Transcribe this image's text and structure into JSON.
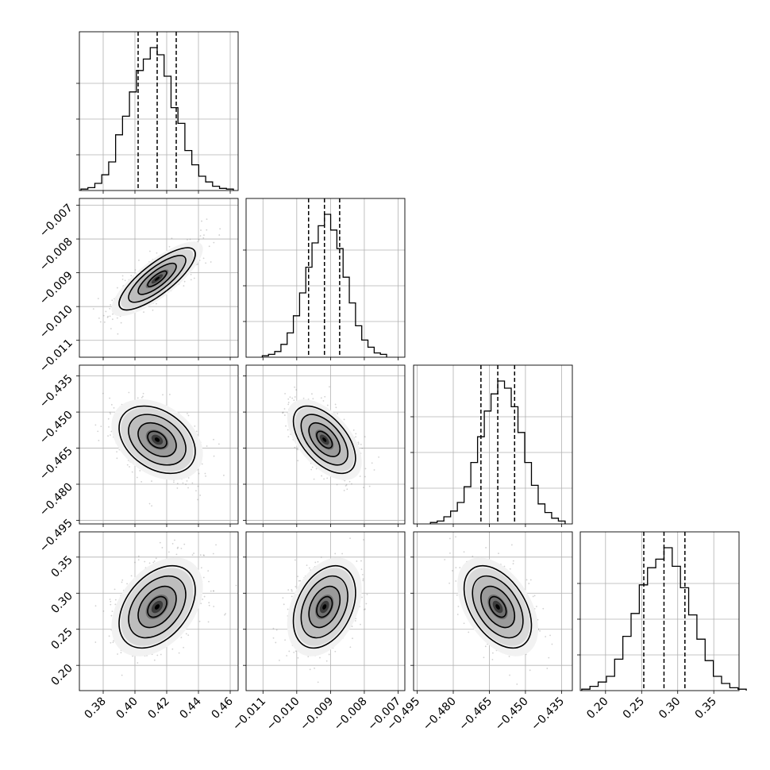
{
  "chart_data": {
    "type": "corner",
    "n_params": 4,
    "grid": true,
    "parameters": [
      {
        "ticks": [
          0.38,
          0.4,
          0.42,
          0.44,
          0.46
        ],
        "tick_labels": [
          "0.38",
          "0.40",
          "0.42",
          "0.44",
          "0.46"
        ],
        "range": [
          0.365,
          0.465
        ],
        "quantiles": [
          0.402,
          0.414,
          0.426
        ],
        "hist": [
          0.01,
          0.02,
          0.05,
          0.11,
          0.2,
          0.39,
          0.52,
          0.69,
          0.84,
          0.92,
          1.0,
          0.95,
          0.8,
          0.58,
          0.47,
          0.28,
          0.18,
          0.1,
          0.06,
          0.03,
          0.015,
          0.01
        ]
      },
      {
        "ticks": [
          -0.011,
          -0.01,
          -0.009,
          -0.008,
          -0.007
        ],
        "tick_labels": [
          "−0.011",
          "−0.010",
          "−0.009",
          "−0.008",
          "−0.007"
        ],
        "range": [
          -0.0115,
          -0.0068
        ],
        "quantiles": [
          -0.00965,
          -0.00918,
          -0.00873
        ],
        "hist": [
          0.01,
          0.02,
          0.04,
          0.09,
          0.17,
          0.29,
          0.45,
          0.63,
          0.8,
          0.92,
          1.0,
          0.89,
          0.76,
          0.56,
          0.38,
          0.22,
          0.12,
          0.07,
          0.03,
          0.02
        ]
      },
      {
        "ticks": [
          -0.495,
          -0.48,
          -0.465,
          -0.45,
          -0.435
        ],
        "tick_labels": [
          "−0.495",
          "−0.480",
          "−0.465",
          "−0.450",
          "−0.435"
        ],
        "range": [
          -0.4965,
          -0.4305
        ],
        "quantiles": [
          -0.4685,
          -0.4615,
          -0.4545
        ],
        "hist": [
          0.01,
          0.02,
          0.05,
          0.09,
          0.15,
          0.26,
          0.43,
          0.61,
          0.79,
          0.91,
          1.0,
          0.95,
          0.82,
          0.64,
          0.43,
          0.27,
          0.14,
          0.08,
          0.04,
          0.02
        ]
      },
      {
        "ticks": [
          0.2,
          0.25,
          0.3,
          0.35
        ],
        "tick_labels": [
          "0.20",
          "0.25",
          "0.30",
          "0.35"
        ],
        "range": [
          0.165,
          0.385
        ],
        "quantiles": [
          0.253,
          0.281,
          0.31
        ],
        "hist": [
          0.01,
          0.03,
          0.06,
          0.1,
          0.22,
          0.38,
          0.54,
          0.74,
          0.86,
          0.92,
          1.0,
          0.87,
          0.72,
          0.53,
          0.36,
          0.21,
          0.1,
          0.05,
          0.02,
          0.01
        ]
      }
    ],
    "correlations": [
      [
        1.0,
        0.8,
        -0.35,
        0.4
      ],
      [
        0.8,
        1.0,
        -0.55,
        0.35
      ],
      [
        -0.35,
        -0.55,
        1.0,
        -0.45
      ],
      [
        0.4,
        0.35,
        -0.45,
        1.0
      ]
    ]
  }
}
